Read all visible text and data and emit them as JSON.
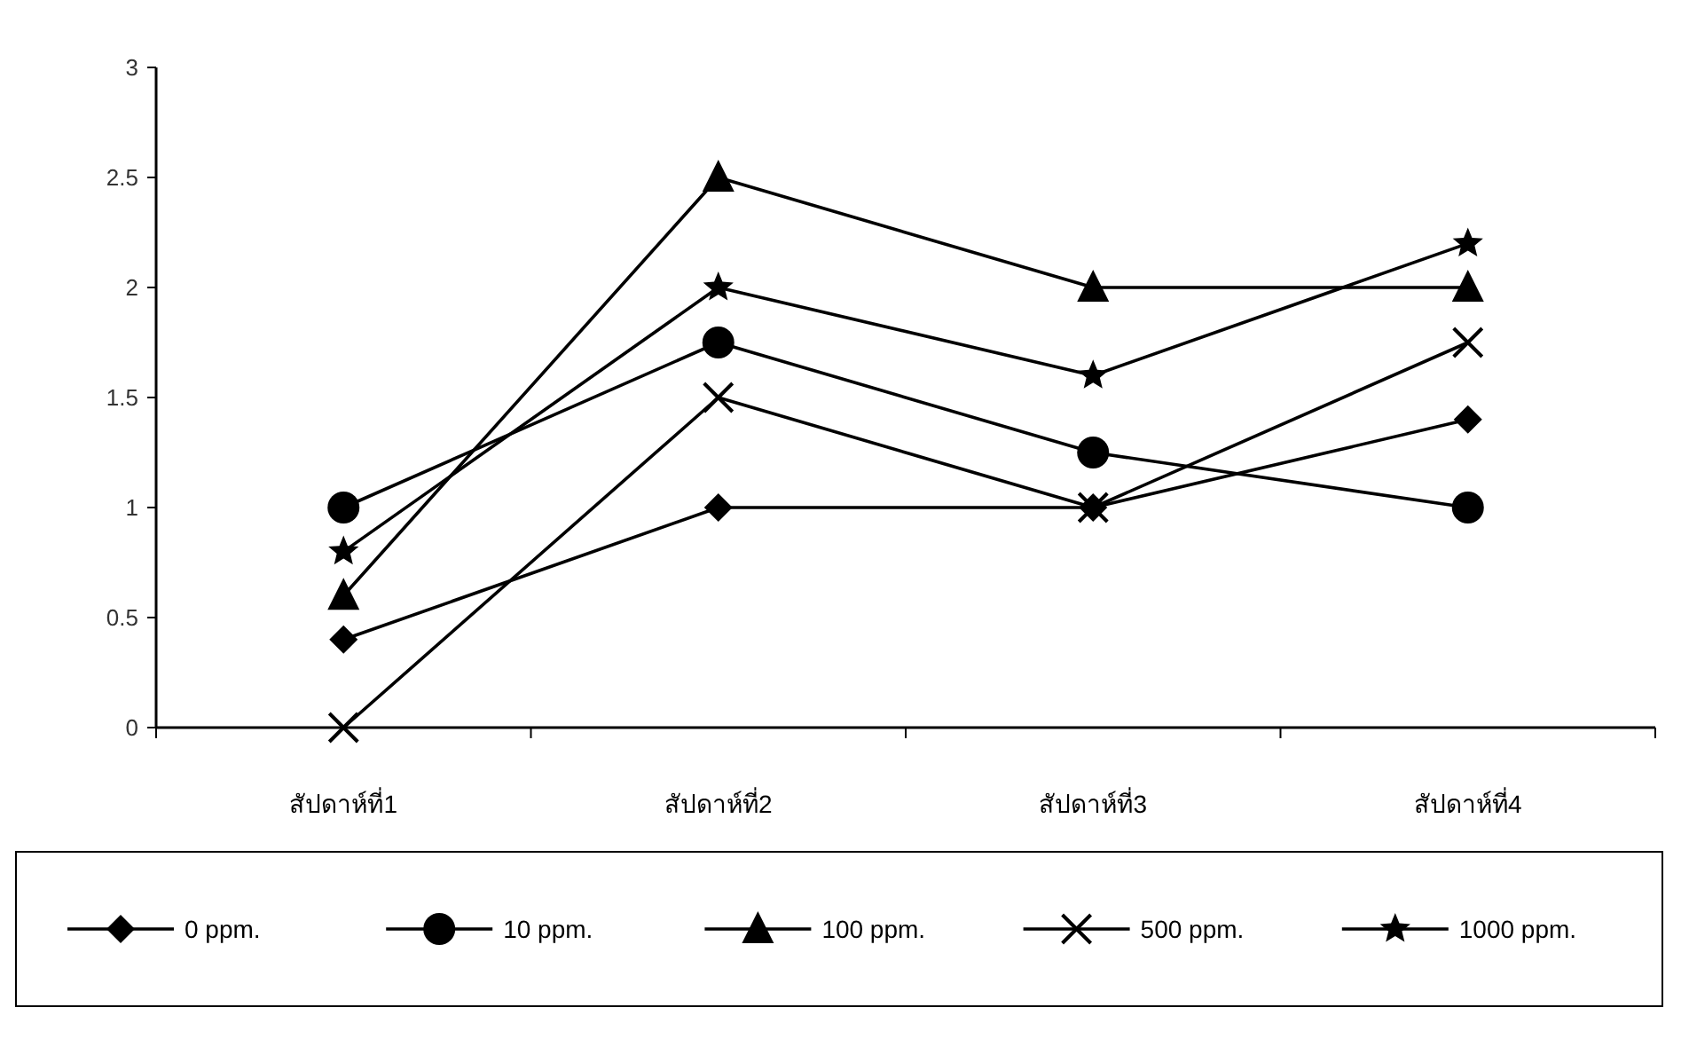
{
  "chart_data": {
    "type": "line",
    "categories": [
      "สัปดาห์ที่1",
      "สัปดาห์ที่2",
      "สัปดาห์ที่3",
      "สัปดาห์ที่4"
    ],
    "ylim": [
      0,
      3
    ],
    "yticks": [
      0,
      0.5,
      1,
      1.5,
      2,
      2.5,
      3
    ],
    "grid": false,
    "legend": "bottom",
    "series": [
      {
        "name": "0 ppm.",
        "color": "#000000",
        "marker": "diamond",
        "values": [
          0.4,
          1,
          1,
          1.4
        ]
      },
      {
        "name": "10 ppm.",
        "color": "#000000",
        "marker": "circle",
        "values": [
          1,
          1.75,
          1.25,
          1
        ]
      },
      {
        "name": "100 ppm.",
        "color": "#000000",
        "marker": "triangle",
        "values": [
          0.6,
          2.5,
          2,
          2
        ]
      },
      {
        "name": "500 ppm.",
        "color": "#000000",
        "marker": "cross",
        "values": [
          0,
          1.5,
          1,
          1.75
        ]
      },
      {
        "name": "1000 ppm.",
        "color": "#000000",
        "marker": "star",
        "values": [
          0.8,
          2,
          1.6,
          2.2
        ]
      }
    ]
  }
}
